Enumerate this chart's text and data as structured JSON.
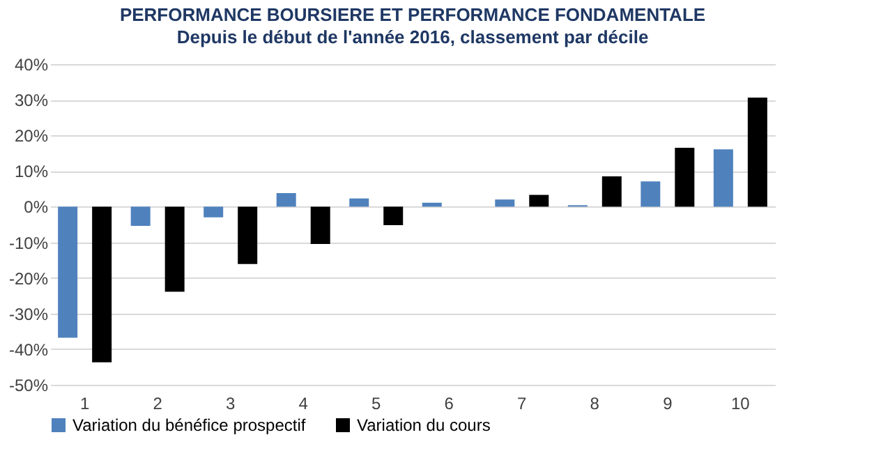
{
  "chart_data": {
    "type": "bar",
    "title": "PERFORMANCE BOURSIERE ET PERFORMANCE FONDAMENTALE",
    "subtitle": "Depuis le début de l'année 2016, classement par décile",
    "categories": [
      "1",
      "2",
      "3",
      "4",
      "5",
      "6",
      "7",
      "8",
      "9",
      "10"
    ],
    "series": [
      {
        "name": "Variation du bénéfice prospectif",
        "color": "#4f81bd",
        "values": [
          -36.8,
          -5.4,
          -3,
          3.8,
          2.3,
          1.1,
          2,
          0.4,
          7.1,
          16.1
        ]
      },
      {
        "name": "Variation du cours",
        "color": "#000000",
        "values": [
          -43.7,
          -23.9,
          -16.1,
          -10.5,
          -5.2,
          0,
          3.3,
          8.5,
          16.5,
          30.6
        ]
      }
    ],
    "ylim": [
      -50,
      40
    ],
    "yticks": [
      {
        "value": -50,
        "label": "-50%"
      },
      {
        "value": -40,
        "label": "-40%"
      },
      {
        "value": -30,
        "label": "-30%"
      },
      {
        "value": -20,
        "label": "-20%"
      },
      {
        "value": -10,
        "label": "-10%"
      },
      {
        "value": 0,
        "label": "0%"
      },
      {
        "value": 10,
        "label": "10%"
      },
      {
        "value": 20,
        "label": "20%"
      },
      {
        "value": 30,
        "label": "30%"
      },
      {
        "value": 40,
        "label": "40%"
      }
    ],
    "grid": "y",
    "legend": "bottom"
  }
}
